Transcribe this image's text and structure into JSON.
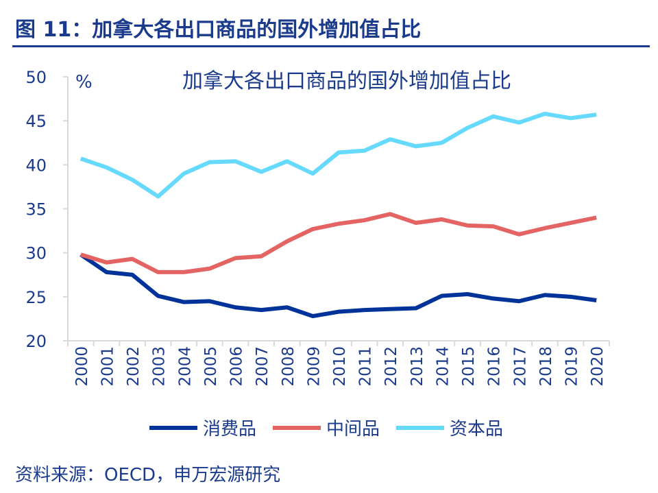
{
  "header": {
    "title": "图 11：加拿大各出口商品的国外增加值占比"
  },
  "footer": {
    "source": "资料来源：OECD，申万宏源研究"
  },
  "chart_data": {
    "type": "line",
    "title": "加拿大各出口商品的国外增加值占比",
    "ylabel": "%",
    "xlabel": "",
    "ylim": [
      20,
      50
    ],
    "yticks": [
      20,
      25,
      30,
      35,
      40,
      45,
      50
    ],
    "grid": false,
    "legend": "bottom",
    "categories": [
      "2000",
      "2001",
      "2002",
      "2003",
      "2004",
      "2005",
      "2006",
      "2007",
      "2008",
      "2009",
      "2010",
      "2011",
      "2012",
      "2013",
      "2014",
      "2015",
      "2016",
      "2017",
      "2018",
      "2019",
      "2020"
    ],
    "series": [
      {
        "name": "消费品",
        "color": "#003399",
        "values": [
          29.8,
          27.8,
          27.5,
          25.1,
          24.4,
          24.5,
          23.8,
          23.5,
          23.8,
          22.8,
          23.3,
          23.5,
          23.6,
          23.7,
          25.1,
          25.3,
          24.8,
          24.5,
          25.2,
          25.0,
          24.6
        ]
      },
      {
        "name": "中间品",
        "color": "#E46464",
        "values": [
          29.8,
          28.9,
          29.3,
          27.8,
          27.8,
          28.2,
          29.4,
          29.6,
          31.3,
          32.7,
          33.3,
          33.7,
          34.4,
          33.4,
          33.8,
          33.1,
          33.0,
          32.1,
          32.8,
          33.4,
          34.0
        ]
      },
      {
        "name": "资本品",
        "color": "#66D9FF",
        "values": [
          40.7,
          39.7,
          38.3,
          36.4,
          39.0,
          40.3,
          40.4,
          39.2,
          40.4,
          39.0,
          41.4,
          41.6,
          42.9,
          42.1,
          42.5,
          44.2,
          45.5,
          44.8,
          45.8,
          45.3,
          45.7
        ]
      }
    ]
  }
}
